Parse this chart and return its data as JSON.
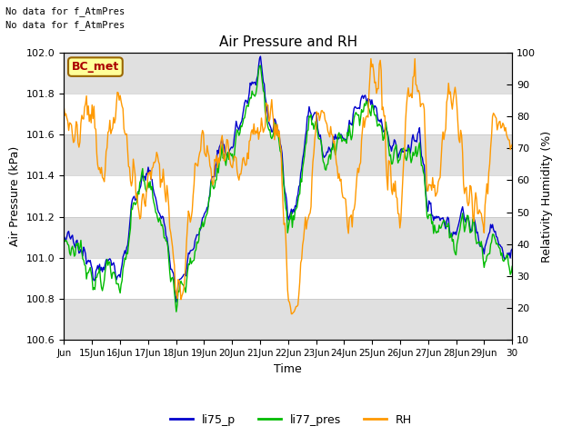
{
  "title": "Air Pressure and RH",
  "xlabel": "Time",
  "ylabel_left": "Air Pressure (kPa)",
  "ylabel_right": "Relativity Humidity (%)",
  "ylim_left": [
    100.6,
    102.0
  ],
  "ylim_right": [
    10,
    100
  ],
  "yticks_left": [
    100.6,
    100.8,
    101.0,
    101.2,
    101.4,
    101.6,
    101.8,
    102.0
  ],
  "yticks_right": [
    10,
    20,
    30,
    40,
    50,
    60,
    70,
    80,
    90,
    100
  ],
  "xtick_labels": [
    "Jun",
    "15Jun",
    "16Jun",
    "17Jun",
    "18Jun",
    "19Jun",
    "20Jun",
    "21Jun",
    "22Jun",
    "23Jun",
    "24Jun",
    "25Jun",
    "26Jun",
    "27Jun",
    "28Jun",
    "29Jun",
    "30"
  ],
  "color_li75": "#0000cc",
  "color_li77": "#00bb00",
  "color_RH": "#ff9900",
  "color_shading": "#e0e0e0",
  "note_line1": "No data for f_AtmPres",
  "note_line2": "No data for f_AtmPres",
  "bc_met_label": "BC_met",
  "bc_met_color_text": "#aa0000",
  "bc_met_color_bg": "#ffff99",
  "bc_met_color_edge": "#996600",
  "legend_labels": [
    "li75_p",
    "li77_pres",
    "RH"
  ],
  "figsize": [
    6.4,
    4.8
  ],
  "dpi": 100
}
